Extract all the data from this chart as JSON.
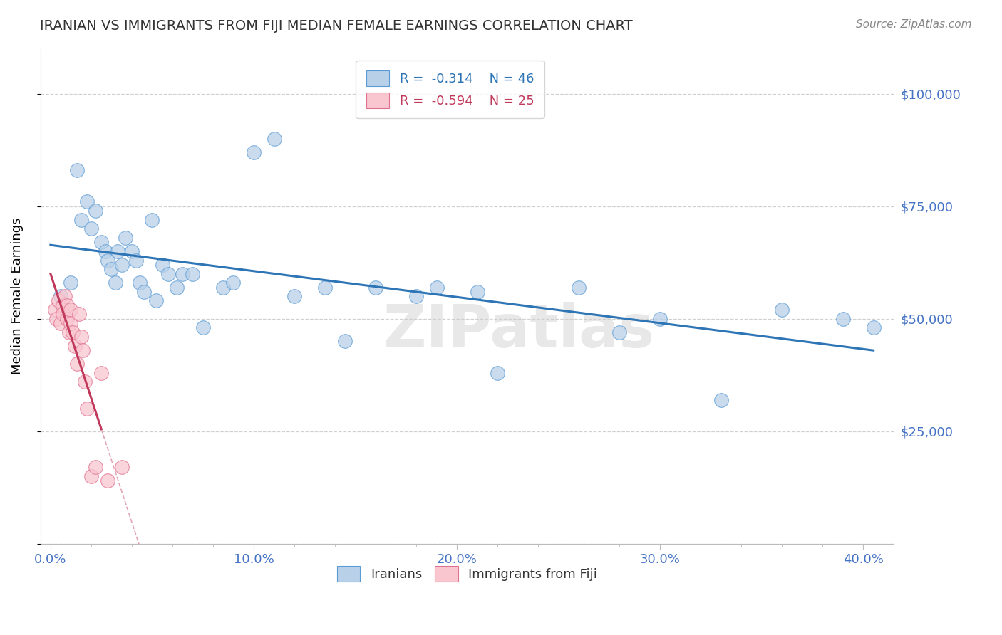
{
  "title": "IRANIAN VS IMMIGRANTS FROM FIJI MEDIAN FEMALE EARNINGS CORRELATION CHART",
  "source": "Source: ZipAtlas.com",
  "ylabel": "Median Female Earnings",
  "xlabel_ticks": [
    "0.0%",
    "10.0%",
    "20.0%",
    "30.0%",
    "40.0%"
  ],
  "xlabel_tick_vals": [
    0.0,
    0.1,
    0.2,
    0.3,
    0.4
  ],
  "ytick_vals": [
    0,
    25000,
    50000,
    75000,
    100000
  ],
  "ytick_labels": [
    "",
    "$25,000",
    "$50,000",
    "$75,000",
    "$100,000"
  ],
  "xlim": [
    -0.005,
    0.415
  ],
  "ylim": [
    0,
    110000
  ],
  "watermark": "ZIPatlas",
  "legend_blue_r": "-0.314",
  "legend_blue_n": "46",
  "legend_pink_r": "-0.594",
  "legend_pink_n": "25",
  "blue_scatter_color": "#b8d0e8",
  "blue_edge_color": "#5b9bd5",
  "pink_scatter_color": "#f9c6d0",
  "pink_edge_color": "#e07090",
  "blue_line_color": "#2e75b6",
  "pink_line_color": "#c0385a",
  "iranians_x": [
    0.005,
    0.01,
    0.013,
    0.015,
    0.018,
    0.02,
    0.022,
    0.025,
    0.027,
    0.028,
    0.03,
    0.032,
    0.033,
    0.035,
    0.037,
    0.04,
    0.042,
    0.044,
    0.046,
    0.05,
    0.052,
    0.055,
    0.058,
    0.062,
    0.065,
    0.07,
    0.075,
    0.085,
    0.09,
    0.1,
    0.11,
    0.12,
    0.135,
    0.145,
    0.16,
    0.18,
    0.19,
    0.21,
    0.22,
    0.26,
    0.28,
    0.3,
    0.33,
    0.36,
    0.39,
    0.405
  ],
  "iranians_y": [
    55000,
    58000,
    83000,
    72000,
    76000,
    70000,
    74000,
    67000,
    65000,
    63000,
    61000,
    58000,
    65000,
    62000,
    68000,
    65000,
    63000,
    58000,
    56000,
    72000,
    54000,
    62000,
    60000,
    57000,
    60000,
    60000,
    48000,
    57000,
    58000,
    87000,
    90000,
    55000,
    57000,
    45000,
    57000,
    55000,
    57000,
    56000,
    38000,
    57000,
    47000,
    50000,
    32000,
    52000,
    50000,
    48000
  ],
  "fiji_x": [
    0.002,
    0.003,
    0.004,
    0.005,
    0.006,
    0.006,
    0.007,
    0.008,
    0.008,
    0.009,
    0.01,
    0.01,
    0.011,
    0.012,
    0.013,
    0.014,
    0.015,
    0.016,
    0.017,
    0.018,
    0.02,
    0.022,
    0.025,
    0.028,
    0.035
  ],
  "fiji_y": [
    52000,
    50000,
    54000,
    49000,
    53000,
    51000,
    55000,
    50000,
    53000,
    47000,
    52000,
    49000,
    47000,
    44000,
    40000,
    51000,
    46000,
    43000,
    36000,
    30000,
    15000,
    17000,
    38000,
    14000,
    17000
  ]
}
